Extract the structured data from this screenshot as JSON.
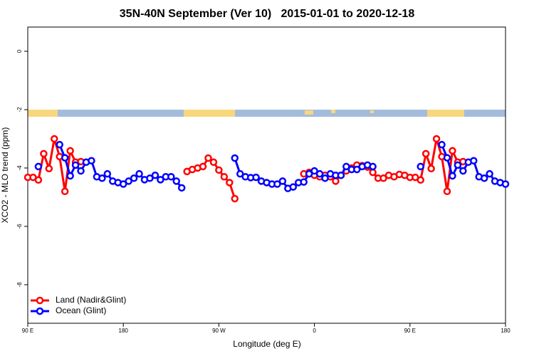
{
  "chart_data": {
    "type": "line",
    "title": "35N-40N September (Ver 10)   2015-01-01 to 2020-12-18",
    "x_label": "Longitude (deg E)",
    "y_label": "XCO2 - MLO trend (ppm)",
    "x": [
      90,
      95,
      100,
      105,
      110,
      115,
      120,
      125,
      130,
      135,
      140,
      145,
      150,
      155,
      160,
      165,
      170,
      175,
      180,
      185,
      190,
      195,
      200,
      205,
      210,
      215,
      220,
      225,
      230,
      235,
      240,
      245,
      250,
      255,
      260,
      265,
      270,
      275,
      280,
      285,
      290,
      295,
      300,
      305,
      310,
      315,
      320,
      325,
      330,
      335,
      340,
      345,
      350,
      355,
      360,
      365,
      370,
      375,
      380,
      385,
      390,
      395,
      400,
      405,
      410,
      415,
      420,
      425,
      430,
      435,
      440,
      445,
      450,
      455,
      460,
      465,
      470,
      475,
      480,
      485,
      490,
      495,
      500,
      505,
      510,
      515,
      520,
      525,
      530,
      535,
      540
    ],
    "series": [
      {
        "name": "Land (Nadir&Glint)",
        "color": "#ff0000",
        "values": [
          -4.32,
          -4.32,
          -4.41,
          -3.51,
          -4.02,
          -3.0,
          -3.61,
          -4.8,
          -3.41,
          -3.8,
          -3.78,
          null,
          null,
          null,
          null,
          null,
          null,
          null,
          null,
          null,
          null,
          null,
          null,
          null,
          null,
          null,
          null,
          null,
          null,
          null,
          -4.12,
          -4.05,
          -4.0,
          -3.95,
          -3.66,
          -3.8,
          -4.07,
          -4.3,
          -4.5,
          -5.05,
          null,
          null,
          null,
          null,
          null,
          null,
          null,
          null,
          null,
          null,
          null,
          null,
          -4.2,
          -4.15,
          -4.25,
          -4.3,
          -4.25,
          -4.3,
          -4.45,
          -4.25,
          -4.1,
          -4.0,
          -3.9,
          -3.92,
          -3.97,
          -4.15,
          -4.35,
          -4.35,
          -4.25,
          -4.3,
          -4.22,
          -4.25,
          -4.32,
          -4.32,
          -4.41,
          -3.51,
          -4.02,
          -3.0,
          -3.61,
          -4.8,
          -3.41,
          -3.8,
          -3.78,
          null,
          null,
          null,
          null,
          null,
          null,
          null,
          null
        ]
      },
      {
        "name": "Ocean (Glint)",
        "color": "#0000ff",
        "values": [
          null,
          null,
          -3.95,
          null,
          null,
          null,
          -3.2,
          -3.65,
          -4.27,
          -3.9,
          -4.1,
          -3.8,
          -3.75,
          -4.3,
          -4.35,
          -4.2,
          -4.45,
          -4.5,
          -4.55,
          -4.45,
          -4.35,
          -4.2,
          -4.4,
          -4.35,
          -4.25,
          -4.4,
          -4.3,
          -4.3,
          -4.45,
          -4.68,
          null,
          null,
          null,
          null,
          null,
          null,
          null,
          null,
          null,
          -3.66,
          -4.2,
          -4.3,
          -4.33,
          -4.32,
          -4.45,
          -4.5,
          -4.55,
          -4.55,
          -4.45,
          -4.7,
          -4.65,
          -4.5,
          -4.48,
          -4.2,
          -4.1,
          -4.2,
          -4.35,
          -4.2,
          -4.25,
          -4.25,
          -3.95,
          -4.05,
          -4.05,
          -3.95,
          -3.9,
          -3.95,
          null,
          null,
          null,
          null,
          null,
          null,
          null,
          null,
          -3.95,
          null,
          null,
          null,
          -3.2,
          -3.65,
          -4.27,
          -3.9,
          -4.1,
          -3.8,
          -3.75,
          -4.3,
          -4.35,
          -4.2,
          -4.45,
          -4.5,
          -4.55
        ]
      }
    ],
    "xlim": [
      90,
      540
    ],
    "ylim": [
      -9.32,
      0.83
    ],
    "xticks": [
      {
        "value": 90,
        "label": "90 E"
      },
      180,
      {
        "value": 270,
        "label": "90 W"
      },
      {
        "value": 360,
        "label": "0"
      },
      {
        "value": 450,
        "label": "90 E"
      },
      {
        "value": 540,
        "label": "180"
      }
    ],
    "yticks": [
      0,
      -2,
      -4,
      -6,
      -8
    ],
    "legend": "bottom-left"
  }
}
